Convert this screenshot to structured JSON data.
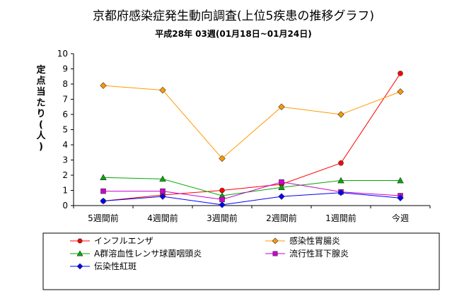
{
  "chart_data": {
    "type": "line",
    "title": "京都府感染症発生動向調査(上位5疾患の推移グラフ)",
    "subtitle": "平成28年 03週(01月18日~01月24日)",
    "ylabel": "定点当たり(人)",
    "xlabel": "",
    "categories": [
      "5週間前",
      "4週間前",
      "3週間前",
      "2週間前",
      "1週間前",
      "今週"
    ],
    "ylim": [
      0,
      10
    ],
    "yticks": [
      "0",
      "1",
      "2",
      "3",
      "4",
      "5",
      "6",
      "7",
      "8",
      "9",
      "10"
    ],
    "grid": false,
    "legend_position": "bottom",
    "series": [
      {
        "name": "インフルエンザ",
        "color": "#ff0000",
        "marker": "circle",
        "values": [
          0.3,
          0.7,
          1.0,
          1.4,
          2.8,
          8.7
        ]
      },
      {
        "name": "感染性胃腸炎",
        "color": "#ff9900",
        "marker": "diamond",
        "values": [
          7.9,
          7.6,
          3.1,
          6.5,
          6.0,
          7.5
        ]
      },
      {
        "name": "A群溶血性レンサ球菌咽頭炎",
        "color": "#00aa00",
        "marker": "triangle",
        "values": [
          1.85,
          1.75,
          0.65,
          1.2,
          1.65,
          1.65
        ]
      },
      {
        "name": "流行性耳下腺炎",
        "color": "#cc00cc",
        "marker": "square",
        "values": [
          0.95,
          0.95,
          0.4,
          1.55,
          0.9,
          0.65
        ]
      },
      {
        "name": "伝染性紅斑",
        "color": "#0000ff",
        "marker": "diamond",
        "values": [
          0.3,
          0.6,
          0.05,
          0.6,
          0.85,
          0.5
        ]
      }
    ]
  }
}
